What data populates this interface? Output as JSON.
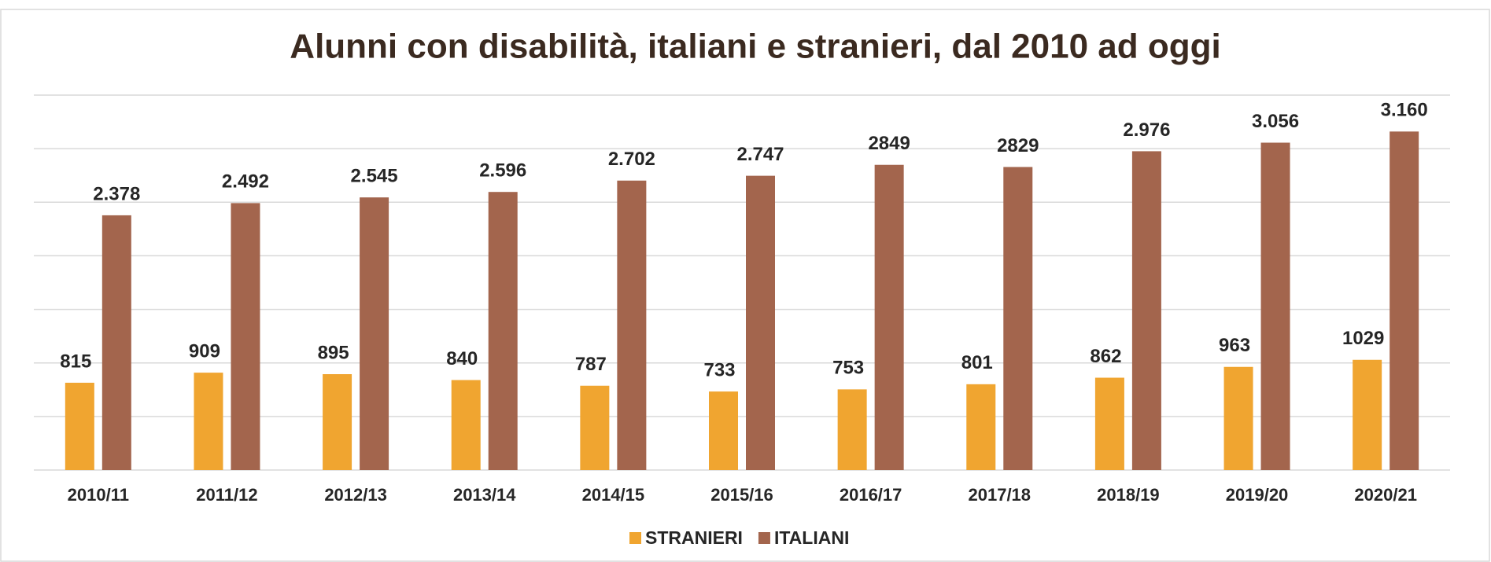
{
  "chart_data": {
    "type": "bar",
    "title": "Alunni con disabilità, italiani e stranieri, dal 2010 ad oggi",
    "categories": [
      "2010/11",
      "2011/12",
      "2012/13",
      "2013/14",
      "2014/15",
      "2015/16",
      "2016/17",
      "2017/18",
      "2018/19",
      "2019/20",
      "2020/21"
    ],
    "series": [
      {
        "name": "STRANIERI",
        "color": "#f0a530",
        "values": [
          815,
          909,
          895,
          840,
          787,
          733,
          753,
          801,
          862,
          963,
          1029
        ]
      },
      {
        "name": "ITALIANI",
        "color": "#a3654d",
        "values": [
          2378,
          2492,
          2545,
          2596,
          2702,
          2747,
          2849,
          2829,
          2976,
          3056,
          3160
        ],
        "value_labels": [
          "2.378",
          "2.492",
          "2.545",
          "2.596",
          "2.702",
          "2.747",
          "2849",
          "2829",
          "2.976",
          "3.056",
          "3.160"
        ]
      }
    ],
    "ylim": [
      0,
      3500
    ],
    "yticks": [
      0,
      500,
      1000,
      1500,
      2000,
      2500,
      3000,
      3500
    ],
    "grid": true,
    "legend": "bottom"
  }
}
